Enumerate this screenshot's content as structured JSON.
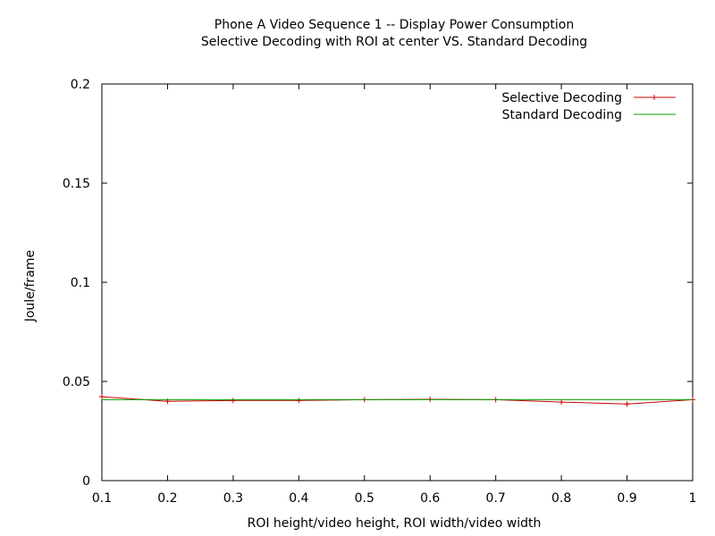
{
  "chart_data": {
    "type": "line",
    "title": "Phone A Video Sequence 1 -- Display Power Consumption",
    "subtitle": "Selective Decoding with ROI at center VS. Standard Decoding",
    "xlabel": "ROI height/video height, ROI width/video width",
    "ylabel": "Joule/frame",
    "xlim": [
      0.1,
      1
    ],
    "ylim": [
      0,
      0.2
    ],
    "xticks": [
      "0.1",
      "0.2",
      "0.3",
      "0.4",
      "0.5",
      "0.6",
      "0.7",
      "0.8",
      "0.9",
      "1"
    ],
    "yticks": [
      "0",
      "0.05",
      "0.1",
      "0.15",
      "0.2"
    ],
    "grid": false,
    "legend_position": "top-right",
    "series": [
      {
        "name": "Selective Decoding",
        "color": "#cc0000",
        "marker": "plus",
        "x": [
          0.1,
          0.2,
          0.3,
          0.4,
          0.5,
          0.6,
          0.7,
          0.8,
          0.9,
          1
        ],
        "y": [
          0.0423,
          0.04,
          0.0404,
          0.0404,
          0.0408,
          0.041,
          0.0408,
          0.0396,
          0.0386,
          0.0408
        ]
      },
      {
        "name": "Standard Decoding",
        "color": "#00a000",
        "marker": "none",
        "x": [
          0.1,
          1
        ],
        "y": [
          0.0408,
          0.0408
        ]
      }
    ]
  }
}
